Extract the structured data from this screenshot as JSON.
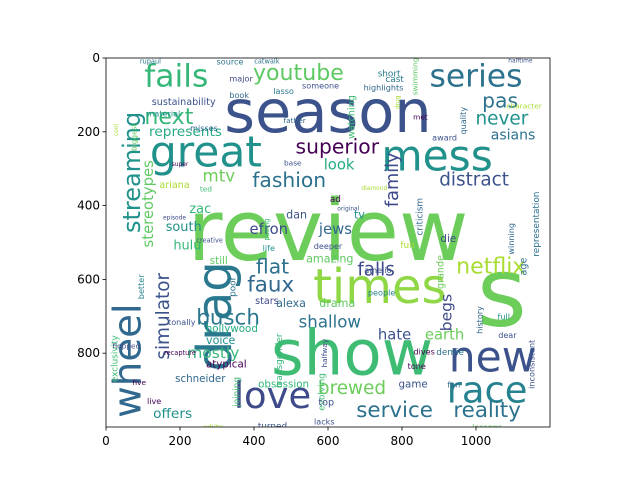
{
  "chart_data": {
    "type": "wordcloud",
    "title": "",
    "xlabel": "",
    "ylabel": "",
    "xlim": [
      0,
      1200
    ],
    "ylim": [
      1000,
      0
    ],
    "x_ticks": [
      0,
      200,
      400,
      600,
      800,
      1000
    ],
    "y_ticks": [
      0,
      200,
      400,
      600,
      800
    ],
    "grid": false,
    "words": [
      {
        "text": "review",
        "x": 600,
        "y": 470,
        "size": 230,
        "color": "#6ccd5a",
        "rot": 0
      },
      {
        "text": "season",
        "x": 600,
        "y": 145,
        "size": 160,
        "color": "#3b528b",
        "rot": 0
      },
      {
        "text": "show",
        "x": 665,
        "y": 800,
        "size": 170,
        "color": "#3fbc73",
        "rot": 0
      },
      {
        "text": "times",
        "x": 740,
        "y": 620,
        "size": 130,
        "color": "#8fd744",
        "rot": 0
      },
      {
        "text": "drag",
        "x": 295,
        "y": 700,
        "size": 130,
        "color": "#2a788e",
        "rot": -90
      },
      {
        "text": "s",
        "x": 1070,
        "y": 635,
        "size": 260,
        "color": "#6ccd5a",
        "rot": 0
      },
      {
        "text": "great",
        "x": 270,
        "y": 255,
        "size": 115,
        "color": "#21918c",
        "rot": 0
      },
      {
        "text": "mess",
        "x": 895,
        "y": 265,
        "size": 115,
        "color": "#21918c",
        "rot": 0
      },
      {
        "text": "new",
        "x": 1045,
        "y": 810,
        "size": 115,
        "color": "#3b528b",
        "rot": 0
      },
      {
        "text": "race",
        "x": 1030,
        "y": 900,
        "size": 100,
        "color": "#26828e",
        "rot": 0
      },
      {
        "text": "love",
        "x": 450,
        "y": 915,
        "size": 100,
        "color": "#3e4a89",
        "rot": 0
      },
      {
        "text": "wheel",
        "x": 60,
        "y": 820,
        "size": 105,
        "color": "#31688e",
        "rot": -90
      },
      {
        "text": "fails",
        "x": 190,
        "y": 50,
        "size": 85,
        "color": "#35b779",
        "rot": 0
      },
      {
        "text": "series",
        "x": 1000,
        "y": 50,
        "size": 85,
        "color": "#2c728e",
        "rot": 0
      },
      {
        "text": "youtube",
        "x": 520,
        "y": 40,
        "size": 60,
        "color": "#5ec962",
        "rot": 0
      },
      {
        "text": "next",
        "x": 170,
        "y": 160,
        "size": 60,
        "color": "#35b779",
        "rot": 0
      },
      {
        "text": "pas",
        "x": 1065,
        "y": 115,
        "size": 55,
        "color": "#2c728e",
        "rot": 0
      },
      {
        "text": "never",
        "x": 1070,
        "y": 165,
        "size": 50,
        "color": "#21918c",
        "rot": 0
      },
      {
        "text": "superior",
        "x": 625,
        "y": 240,
        "size": 55,
        "color": "#440154",
        "rot": 0
      },
      {
        "text": "fashion",
        "x": 495,
        "y": 330,
        "size": 55,
        "color": "#2c728e",
        "rot": 0
      },
      {
        "text": "distract",
        "x": 995,
        "y": 330,
        "size": 50,
        "color": "#3b528b",
        "rot": 0
      },
      {
        "text": "streaming",
        "x": 70,
        "y": 310,
        "size": 65,
        "color": "#21918c",
        "rot": -90
      },
      {
        "text": "represents",
        "x": 215,
        "y": 200,
        "size": 37,
        "color": "#25ab82",
        "rot": 0
      },
      {
        "text": "asians",
        "x": 1100,
        "y": 210,
        "size": 38,
        "color": "#2c728e",
        "rot": 0
      },
      {
        "text": "look",
        "x": 630,
        "y": 290,
        "size": 40,
        "color": "#25ab82",
        "rot": 0
      },
      {
        "text": "family",
        "x": 775,
        "y": 330,
        "size": 48,
        "color": "#3e4a89",
        "rot": -90
      },
      {
        "text": "mtv",
        "x": 305,
        "y": 320,
        "size": 45,
        "color": "#6ccd5a",
        "rot": 0
      },
      {
        "text": "stereotypes",
        "x": 115,
        "y": 395,
        "size": 40,
        "color": "#5ec962",
        "rot": -90
      },
      {
        "text": "ariana",
        "x": 185,
        "y": 345,
        "size": 26,
        "color": "#aadc32",
        "rot": 0
      },
      {
        "text": "zac",
        "x": 255,
        "y": 410,
        "size": 35,
        "color": "#35b779",
        "rot": 0
      },
      {
        "text": "efron",
        "x": 440,
        "y": 465,
        "size": 40,
        "color": "#3e4a89",
        "rot": 0
      },
      {
        "text": "jews",
        "x": 620,
        "y": 465,
        "size": 40,
        "color": "#31688e",
        "rot": 0
      },
      {
        "text": "south",
        "x": 210,
        "y": 460,
        "size": 35,
        "color": "#21918c",
        "rot": 0
      },
      {
        "text": "hulu",
        "x": 220,
        "y": 510,
        "size": 35,
        "color": "#35b779",
        "rot": 0
      },
      {
        "text": "flat",
        "x": 450,
        "y": 565,
        "size": 55,
        "color": "#2c728e",
        "rot": 0
      },
      {
        "text": "faux",
        "x": 445,
        "y": 615,
        "size": 58,
        "color": "#31688e",
        "rot": 0
      },
      {
        "text": "falls",
        "x": 730,
        "y": 575,
        "size": 50,
        "color": "#3e4a89",
        "rot": 0
      },
      {
        "text": "netflix",
        "x": 1040,
        "y": 565,
        "size": 60,
        "color": "#aadc32",
        "rot": 0
      },
      {
        "text": "simulator",
        "x": 155,
        "y": 700,
        "size": 50,
        "color": "#3b528b",
        "rot": -90
      },
      {
        "text": "busch",
        "x": 330,
        "y": 705,
        "size": 58,
        "color": "#2a788e",
        "rot": 0
      },
      {
        "text": "mostly",
        "x": 290,
        "y": 800,
        "size": 42,
        "color": "#35b779",
        "rot": 0
      },
      {
        "text": "shallow",
        "x": 605,
        "y": 715,
        "size": 45,
        "color": "#2c728e",
        "rot": 0
      },
      {
        "text": "hate",
        "x": 780,
        "y": 750,
        "size": 40,
        "color": "#3b528b",
        "rot": 0
      },
      {
        "text": "earth",
        "x": 915,
        "y": 750,
        "size": 40,
        "color": "#6ccd5a",
        "rot": 0
      },
      {
        "text": "begs",
        "x": 920,
        "y": 690,
        "size": 42,
        "color": "#3e4a89",
        "rot": -90
      },
      {
        "text": "brewed",
        "x": 665,
        "y": 895,
        "size": 50,
        "color": "#6ccd5a",
        "rot": 0
      },
      {
        "text": "service",
        "x": 780,
        "y": 955,
        "size": 58,
        "color": "#2c728e",
        "rot": 0
      },
      {
        "text": "reality",
        "x": 1030,
        "y": 955,
        "size": 58,
        "color": "#2c728e",
        "rot": 0
      },
      {
        "text": "offers",
        "x": 180,
        "y": 965,
        "size": 37,
        "color": "#21918c",
        "rot": 0
      },
      {
        "text": "voice",
        "x": 310,
        "y": 765,
        "size": 30,
        "color": "#21918c",
        "rot": 0
      },
      {
        "text": "hollywood",
        "x": 340,
        "y": 735,
        "size": 28,
        "color": "#25ab82",
        "rot": 0
      },
      {
        "text": "schneider",
        "x": 255,
        "y": 870,
        "size": 28,
        "color": "#31688e",
        "rot": 0
      },
      {
        "text": "atypical",
        "x": 325,
        "y": 830,
        "size": 28,
        "color": "#440154",
        "rot": 0
      },
      {
        "text": "obsession",
        "x": 480,
        "y": 885,
        "size": 28,
        "color": "#35b779",
        "rot": 0
      },
      {
        "text": "drama",
        "x": 625,
        "y": 665,
        "size": 30,
        "color": "#5ec962",
        "rot": 0
      },
      {
        "text": "alexa",
        "x": 500,
        "y": 665,
        "size": 30,
        "color": "#31688e",
        "rot": 0
      },
      {
        "text": "amazing",
        "x": 605,
        "y": 545,
        "size": 30,
        "color": "#5ec962",
        "rot": 0
      },
      {
        "text": "stars",
        "x": 435,
        "y": 660,
        "size": 26,
        "color": "#3e4a89",
        "rot": 0
      },
      {
        "text": "still",
        "x": 305,
        "y": 550,
        "size": 28,
        "color": "#5ec962",
        "rot": 0
      },
      {
        "text": "better",
        "x": 95,
        "y": 620,
        "size": 22,
        "color": "#26828e",
        "rot": -90
      },
      {
        "text": "poor",
        "x": 345,
        "y": 620,
        "size": 24,
        "color": "#2c728e",
        "rot": -90
      },
      {
        "text": "tonally",
        "x": 205,
        "y": 715,
        "size": 22,
        "color": "#3b528b",
        "rot": 0
      },
      {
        "text": "exclusivity",
        "x": 25,
        "y": 815,
        "size": 24,
        "color": "#3fbc73",
        "rot": -90
      },
      {
        "text": "transgender",
        "x": 470,
        "y": 820,
        "size": 24,
        "color": "#35b779",
        "rot": -90
      },
      {
        "text": "evolving",
        "x": 585,
        "y": 905,
        "size": 24,
        "color": "#3fbc73",
        "rot": -90
      },
      {
        "text": "joining",
        "x": 355,
        "y": 905,
        "size": 24,
        "color": "#3fbc73",
        "rot": -90
      },
      {
        "text": "tv",
        "x": 685,
        "y": 425,
        "size": 30,
        "color": "#21918c",
        "rot": 0
      },
      {
        "text": "dan",
        "x": 515,
        "y": 425,
        "size": 30,
        "color": "#3b528b",
        "rot": 0
      },
      {
        "text": "die",
        "x": 925,
        "y": 490,
        "size": 28,
        "color": "#3e4a89",
        "rot": 0
      },
      {
        "text": "criticism",
        "x": 850,
        "y": 430,
        "size": 24,
        "color": "#31688e",
        "rot": -90
      },
      {
        "text": "representation",
        "x": 1165,
        "y": 450,
        "size": 24,
        "color": "#2c728e",
        "rot": -90
      },
      {
        "text": "age",
        "x": 1130,
        "y": 565,
        "size": 26,
        "color": "#2c728e",
        "rot": -90
      },
      {
        "text": "winning",
        "x": 1095,
        "y": 490,
        "size": 22,
        "color": "#31688e",
        "rot": -90
      },
      {
        "text": "life",
        "x": 440,
        "y": 515,
        "size": 22,
        "color": "#21918c",
        "rot": 0
      },
      {
        "text": "deeper",
        "x": 600,
        "y": 510,
        "size": 22,
        "color": "#3b528b",
        "rot": 0
      },
      {
        "text": "fun",
        "x": 815,
        "y": 510,
        "size": 24,
        "color": "#aadc32",
        "rot": 0
      },
      {
        "text": "amelio",
        "x": 735,
        "y": 575,
        "size": 22,
        "color": "#3b528b",
        "rot": 0
      },
      {
        "text": "people",
        "x": 745,
        "y": 635,
        "size": 22,
        "color": "#26828e",
        "rot": 0
      },
      {
        "text": "grande",
        "x": 905,
        "y": 580,
        "size": 26,
        "color": "#6ccd5a",
        "rot": -90
      },
      {
        "text": "history",
        "x": 1010,
        "y": 710,
        "size": 22,
        "color": "#31688e",
        "rot": -90
      },
      {
        "text": "full",
        "x": 1075,
        "y": 700,
        "size": 22,
        "color": "#21918c",
        "rot": 0
      },
      {
        "text": "inconsistent",
        "x": 1150,
        "y": 830,
        "size": 22,
        "color": "#3b528b",
        "rot": -90
      },
      {
        "text": "dear",
        "x": 1085,
        "y": 750,
        "size": 22,
        "color": "#3b528b",
        "rot": 0
      },
      {
        "text": "demie",
        "x": 930,
        "y": 800,
        "size": 24,
        "color": "#2c728e",
        "rot": 0
      },
      {
        "text": "dives",
        "x": 860,
        "y": 795,
        "size": 22,
        "color": "#440154",
        "rot": 0
      },
      {
        "text": "tone",
        "x": 840,
        "y": 835,
        "size": 22,
        "color": "#440154",
        "rot": 0
      },
      {
        "text": "game",
        "x": 830,
        "y": 885,
        "size": 28,
        "color": "#3b528b",
        "rot": 0
      },
      {
        "text": "fan",
        "x": 940,
        "y": 885,
        "size": 22,
        "color": "#31688e",
        "rot": 0
      },
      {
        "text": "lessons",
        "x": 1030,
        "y": 1000,
        "size": 22,
        "color": "#5ec962",
        "rot": 0
      },
      {
        "text": "top",
        "x": 595,
        "y": 935,
        "size": 26,
        "color": "#3b528b",
        "rot": 0
      },
      {
        "text": "lacks",
        "x": 590,
        "y": 985,
        "size": 22,
        "color": "#3b528b",
        "rot": 0
      },
      {
        "text": "turned",
        "x": 450,
        "y": 1000,
        "size": 24,
        "color": "#3b528b",
        "rot": 0
      },
      {
        "text": "white",
        "x": 290,
        "y": 1000,
        "size": 20,
        "color": "#aadc32",
        "rot": 0
      },
      {
        "text": "live",
        "x": 130,
        "y": 930,
        "size": 22,
        "color": "#440154",
        "rot": 0
      },
      {
        "text": "five",
        "x": 90,
        "y": 880,
        "size": 20,
        "color": "#440154",
        "rot": 0
      },
      {
        "text": "flopped",
        "x": 55,
        "y": 780,
        "size": 20,
        "color": "#3e4a89",
        "rot": 0
      },
      {
        "text": "recapture",
        "x": 200,
        "y": 800,
        "size": 18,
        "color": "#440154",
        "rot": 0
      },
      {
        "text": "halfway",
        "x": 590,
        "y": 800,
        "size": 20,
        "color": "#3e4a89",
        "rot": -90
      },
      {
        "text": "source",
        "x": 335,
        "y": 10,
        "size": 22,
        "color": "#2c728e",
        "rot": 0
      },
      {
        "text": "catwalk",
        "x": 435,
        "y": 10,
        "size": 18,
        "color": "#2c728e",
        "rot": 0
      },
      {
        "text": "major",
        "x": 365,
        "y": 55,
        "size": 22,
        "color": "#3e4a89",
        "rot": 0
      },
      {
        "text": "book",
        "x": 360,
        "y": 100,
        "size": 22,
        "color": "#31688e",
        "rot": 0
      },
      {
        "text": "sustainability",
        "x": 210,
        "y": 120,
        "size": 26,
        "color": "#3b528b",
        "rot": 0
      },
      {
        "text": "material",
        "x": 155,
        "y": 150,
        "size": 22,
        "color": "#21918c",
        "rot": 0
      },
      {
        "text": "misses",
        "x": 265,
        "y": 190,
        "size": 22,
        "color": "#31688e",
        "rot": 0
      },
      {
        "text": "biggest",
        "x": 75,
        "y": 215,
        "size": 20,
        "color": "#5ec962",
        "rot": -90
      },
      {
        "text": "cool",
        "x": 30,
        "y": 195,
        "size": 16,
        "color": "#aadc32",
        "rot": -90
      },
      {
        "text": "father",
        "x": 510,
        "y": 170,
        "size": 20,
        "color": "#31688e",
        "rot": 0
      },
      {
        "text": "base",
        "x": 505,
        "y": 285,
        "size": 20,
        "color": "#3b528b",
        "rot": 0
      },
      {
        "text": "super",
        "x": 200,
        "y": 290,
        "size": 16,
        "color": "#440154",
        "rot": 0
      },
      {
        "text": "ted",
        "x": 270,
        "y": 355,
        "size": 20,
        "color": "#3fbc73",
        "rot": 0
      },
      {
        "text": "episode",
        "x": 185,
        "y": 435,
        "size": 16,
        "color": "#3e4a89",
        "rot": 0
      },
      {
        "text": "creative",
        "x": 280,
        "y": 495,
        "size": 18,
        "color": "#3b528b",
        "rot": 0
      },
      {
        "text": "pacing",
        "x": 435,
        "y": 465,
        "size": 18,
        "color": "#3fbc73",
        "rot": -90
      },
      {
        "text": "original",
        "x": 655,
        "y": 410,
        "size": 16,
        "color": "#3b528b",
        "rot": 0
      },
      {
        "text": "ad",
        "x": 620,
        "y": 385,
        "size": 24,
        "color": "#440154",
        "rot": 0
      },
      {
        "text": "diamond",
        "x": 725,
        "y": 355,
        "size": 16,
        "color": "#aadc32",
        "rot": 0
      },
      {
        "text": "watching",
        "x": 665,
        "y": 160,
        "size": 26,
        "color": "#3fbc73",
        "rot": -90
      },
      {
        "text": "someone",
        "x": 580,
        "y": 75,
        "size": 22,
        "color": "#3b528b",
        "rot": 0
      },
      {
        "text": "lasso",
        "x": 480,
        "y": 90,
        "size": 22,
        "color": "#2a788e",
        "rot": 0
      },
      {
        "text": "short",
        "x": 765,
        "y": 45,
        "size": 24,
        "color": "#2a788e",
        "rot": 0
      },
      {
        "text": "cast",
        "x": 780,
        "y": 60,
        "size": 24,
        "color": "#2a788e",
        "rot": 0
      },
      {
        "text": "highlights",
        "x": 750,
        "y": 80,
        "size": 22,
        "color": "#31688e",
        "rot": 0
      },
      {
        "text": "swimming",
        "x": 835,
        "y": 50,
        "size": 20,
        "color": "#5ec962",
        "rot": -90
      },
      {
        "text": "rupaul",
        "x": 120,
        "y": 10,
        "size": 18,
        "color": "#2a788e",
        "rot": 0
      },
      {
        "text": "halftime",
        "x": 1120,
        "y": 10,
        "size": 16,
        "color": "#3b528b",
        "rot": 0
      },
      {
        "text": "character",
        "x": 1130,
        "y": 130,
        "size": 20,
        "color": "#aadc32",
        "rot": 0
      },
      {
        "text": "quality",
        "x": 965,
        "y": 170,
        "size": 22,
        "color": "#31688e",
        "rot": -90
      },
      {
        "text": "award",
        "x": 915,
        "y": 215,
        "size": 22,
        "color": "#3b528b",
        "rot": 0
      },
      {
        "text": "met",
        "x": 850,
        "y": 160,
        "size": 20,
        "color": "#440154",
        "rot": 0
      },
      {
        "text": "drug",
        "x": 790,
        "y": 120,
        "size": 16,
        "color": "#aadc32",
        "rot": -90
      }
    ]
  }
}
